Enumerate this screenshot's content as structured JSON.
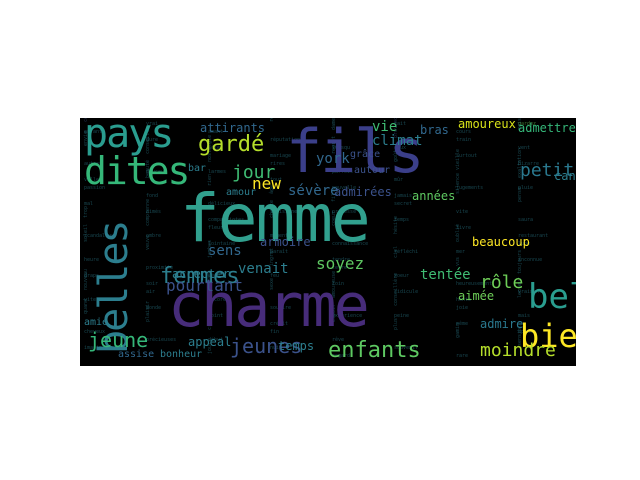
{
  "palette": {
    "teal": "#2a9d8f",
    "cyan": "#31a08e",
    "purple": "#472c7a",
    "indigo": "#3b3f8a",
    "blue": "#2c6e8e",
    "green": "#3fbc73",
    "lime": "#8fd744",
    "yellow": "#f0e51a",
    "olive": "#b5de2b"
  },
  "words": [
    {
      "text": "femme",
      "color": "#31a08e"
    },
    {
      "text": "fils",
      "color": "#3b3f8a"
    },
    {
      "text": "charme",
      "color": "#472c7a"
    },
    {
      "text": "pays",
      "color": "#2a9d8f"
    },
    {
      "text": "dites",
      "color": "#35b779"
    },
    {
      "text": "belles",
      "color": "#2c7e8e"
    },
    {
      "text": "bien",
      "color": "#fde725"
    },
    {
      "text": "belle",
      "color": "#2a9d8f"
    },
    {
      "text": "gardé",
      "color": "#b5de2b"
    },
    {
      "text": "femmes",
      "color": "#2c7e8e"
    },
    {
      "text": "jour",
      "color": "#3fbc73"
    },
    {
      "text": "new",
      "color": "#fde725"
    },
    {
      "text": "jeune",
      "color": "#35b779"
    },
    {
      "text": "jeunes",
      "color": "#3b528b"
    },
    {
      "text": "enfants",
      "color": "#5ec962"
    },
    {
      "text": "moindre",
      "color": "#b5de2b"
    },
    {
      "text": "rôle",
      "color": "#6ece58"
    },
    {
      "text": "petit",
      "color": "#2a788e"
    },
    {
      "text": "pourtant",
      "color": "#3b528b"
    },
    {
      "text": "york",
      "color": "#31688e"
    },
    {
      "text": "sévère",
      "color": "#31688e"
    },
    {
      "text": "sens",
      "color": "#31688e"
    },
    {
      "text": "soyez",
      "color": "#5ec962"
    },
    {
      "text": "venait",
      "color": "#2c7e8e"
    },
    {
      "text": "tentée",
      "color": "#3fbc73"
    },
    {
      "text": "temps",
      "color": "#2c7e8e"
    },
    {
      "text": "cantonnez",
      "color": "#2c7e8e"
    },
    {
      "text": "admettre",
      "color": "#35b779"
    },
    {
      "text": "amoureux",
      "color": "#d8e219"
    },
    {
      "text": "années",
      "color": "#5ec962"
    },
    {
      "text": "vie",
      "color": "#3fbc73"
    },
    {
      "text": "climat",
      "color": "#2c7e8e"
    },
    {
      "text": "bras",
      "color": "#31688e"
    },
    {
      "text": "attirants",
      "color": "#31688e"
    },
    {
      "text": "admirées",
      "color": "#3b528b"
    },
    {
      "text": "armoire",
      "color": "#3b528b"
    },
    {
      "text": "beaucoup",
      "color": "#fde725"
    },
    {
      "text": "aimée",
      "color": "#6ece58"
    },
    {
      "text": "admire",
      "color": "#2a788e"
    },
    {
      "text": "accepter",
      "color": "#2c7e8e"
    },
    {
      "text": "appeal",
      "color": "#2c7e8e"
    },
    {
      "text": "assise",
      "color": "#31688e"
    },
    {
      "text": "bonheur",
      "color": "#2c7e8e"
    },
    {
      "text": "amie",
      "color": "#2c7e8e"
    },
    {
      "text": "amour",
      "color": "#2c7e8e"
    },
    {
      "text": "bar",
      "color": "#2c7e8e"
    },
    {
      "text": "autour",
      "color": "#3b528b"
    },
    {
      "text": "grâce",
      "color": "#3b528b"
    },
    {
      "text": "certainement",
      "color": "#3b528b"
    },
    {
      "text": "gardez",
      "color": "#6ece58"
    },
    {
      "text": "cours",
      "color": "#2c7e8e"
    },
    {
      "text": "province",
      "color": "#3b528b"
    },
    {
      "text": "lorsqu",
      "color": "#2c7e8e"
    },
    {
      "text": "mariage",
      "color": "#2c7e8e"
    },
    {
      "text": "nostalgie",
      "color": "#2c7e8e"
    },
    {
      "text": "douceur",
      "color": "#2c7e8e"
    },
    {
      "text": "ville",
      "color": "#2c7e8e"
    },
    {
      "text": "exaltation",
      "color": "#2c7e8e"
    },
    {
      "text": "jugements",
      "color": "#2c7e8e"
    },
    {
      "text": "jamais",
      "color": "#2c7e8e"
    },
    {
      "text": "fille",
      "color": "#2c7e8e"
    },
    {
      "text": "louisiane",
      "color": "#2c7e8e"
    },
    {
      "text": "compatriotes",
      "color": "#2c7e8e"
    },
    {
      "text": "comprenne",
      "color": "#2c7e8e"
    },
    {
      "text": "scandaleux",
      "color": "#2c7e8e"
    },
    {
      "text": "restaurant",
      "color": "#2c7e8e"
    },
    {
      "text": "oublié",
      "color": "#2c7e8e"
    },
    {
      "text": "réfléchi",
      "color": "#2c7e8e"
    },
    {
      "text": "tendre",
      "color": "#2c7e8e"
    },
    {
      "text": "ingrat",
      "color": "#2c7e8e"
    },
    {
      "text": "mère",
      "color": "#2c7e8e"
    },
    {
      "text": "soir",
      "color": "#2c7e8e"
    },
    {
      "text": "nouveau",
      "color": "#2c7e8e"
    },
    {
      "text": "vraiment",
      "color": "#2c7e8e"
    },
    {
      "text": "honte",
      "color": "#2c7e8e"
    },
    {
      "text": "conseillère",
      "color": "#2c7e8e"
    },
    {
      "text": "expérience",
      "color": "#2c7e8e"
    },
    {
      "text": "créait",
      "color": "#2c7e8e"
    },
    {
      "text": "critique",
      "color": "#2c7e8e"
    },
    {
      "text": "précieuses",
      "color": "#2c7e8e"
    },
    {
      "text": "imagine",
      "color": "#2c7e8e"
    },
    {
      "text": "sensible",
      "color": "#2c7e8e"
    },
    {
      "text": "rare",
      "color": "#2c7e8e"
    },
    {
      "text": "fait",
      "color": "#2c7e8e"
    },
    {
      "text": "dame",
      "color": "#2c7e8e"
    },
    {
      "text": "réputation",
      "color": "#2c7e8e"
    },
    {
      "text": "côté",
      "color": "#2c7e8e"
    },
    {
      "text": "conseille",
      "color": "#2c7e8e"
    },
    {
      "text": "autres",
      "color": "#2c7e8e"
    },
    {
      "text": "bizarre",
      "color": "#2c7e8e"
    },
    {
      "text": "vieille",
      "color": "#2c7e8e"
    },
    {
      "text": "mûr",
      "color": "#2c7e8e"
    },
    {
      "text": "nouvelle",
      "color": "#2c7e8e"
    },
    {
      "text": "âge",
      "color": "#2c7e8e"
    },
    {
      "text": "délicieux",
      "color": "#2c7e8e"
    },
    {
      "text": "aimés",
      "color": "#2c7e8e"
    },
    {
      "text": "trop",
      "color": "#2c7e8e"
    },
    {
      "text": "saura",
      "color": "#2c7e8e"
    },
    {
      "text": "livre",
      "color": "#2c7e8e"
    },
    {
      "text": "hésite",
      "color": "#2c7e8e"
    },
    {
      "text": "connaissance",
      "color": "#2c7e8e"
    },
    {
      "text": "paraît",
      "color": "#2c7e8e"
    },
    {
      "text": "jambes",
      "color": "#2c7e8e"
    },
    {
      "text": "proximité",
      "color": "#2c7e8e"
    },
    {
      "text": "draps",
      "color": "#2c7e8e"
    },
    {
      "text": "toujours",
      "color": "#2c7e8e"
    },
    {
      "text": "heureusement",
      "color": "#2c7e8e"
    },
    {
      "text": "ridicule",
      "color": "#2c7e8e"
    },
    {
      "text": "amoureuse",
      "color": "#2c7e8e"
    },
    {
      "text": "sourire",
      "color": "#2c7e8e"
    },
    {
      "text": "point",
      "color": "#2c7e8e"
    },
    {
      "text": "plaisir",
      "color": "#2c7e8e"
    },
    {
      "text": "cheveux",
      "color": "#2c7e8e"
    },
    {
      "text": "épouse",
      "color": "#2c7e8e"
    },
    {
      "text": "gamin",
      "color": "#2c7e8e"
    },
    {
      "text": "souvenir",
      "color": "#2c7e8e"
    },
    {
      "text": "regard",
      "color": "#2c7e8e"
    },
    {
      "text": "reste",
      "color": "#2c7e8e"
    },
    {
      "text": "amant",
      "color": "#2c7e8e"
    },
    {
      "text": "dure",
      "color": "#2c7e8e"
    },
    {
      "text": "envie",
      "color": "#2c7e8e"
    },
    {
      "text": "vent",
      "color": "#2c7e8e"
    },
    {
      "text": "surtout",
      "color": "#2c7e8e"
    },
    {
      "text": "goût",
      "color": "#2c7e8e"
    },
    {
      "text": "parfois",
      "color": "#2c7e8e"
    },
    {
      "text": "tout",
      "color": "#2c7e8e"
    },
    {
      "text": "rien",
      "color": "#2c7e8e"
    },
    {
      "text": "fond",
      "color": "#2c7e8e"
    },
    {
      "text": "mal",
      "color": "#2c7e8e"
    },
    {
      "text": "pense",
      "color": "#2c7e8e"
    },
    {
      "text": "vite",
      "color": "#2c7e8e"
    },
    {
      "text": "temps",
      "color": "#2c7e8e"
    },
    {
      "text": "coeur",
      "color": "#2c7e8e"
    },
    {
      "text": "moment",
      "color": "#2c7e8e"
    },
    {
      "text": "lointaine",
      "color": "#2c7e8e"
    },
    {
      "text": "veuve",
      "color": "#2c7e8e"
    },
    {
      "text": "heure",
      "color": "#2c7e8e"
    },
    {
      "text": "inconnue",
      "color": "#2c7e8e"
    },
    {
      "text": "vus",
      "color": "#2c7e8e"
    },
    {
      "text": "soeur",
      "color": "#2c7e8e"
    },
    {
      "text": "loin",
      "color": "#2c7e8e"
    },
    {
      "text": "sexe",
      "color": "#2c7e8e"
    },
    {
      "text": "encore",
      "color": "#2c7e8e"
    },
    {
      "text": "monde",
      "color": "#2c7e8e"
    },
    {
      "text": "quand",
      "color": "#2c7e8e"
    },
    {
      "text": "mais",
      "color": "#2c7e8e"
    },
    {
      "text": "même",
      "color": "#2c7e8e"
    },
    {
      "text": "plus",
      "color": "#2c7e8e"
    },
    {
      "text": "rêve",
      "color": "#2c7e8e"
    },
    {
      "text": "nuit",
      "color": "#2c7e8e"
    },
    {
      "text": "jours",
      "color": "#2c7e8e"
    },
    {
      "text": "vrai",
      "color": "#2c7e8e"
    },
    {
      "text": "enfant",
      "color": "#2c7e8e"
    },
    {
      "text": "maison",
      "color": "#2c7e8e"
    },
    {
      "text": "train",
      "color": "#2c7e8e"
    },
    {
      "text": "doux",
      "color": "#2c7e8e"
    },
    {
      "text": "regret",
      "color": "#2c7e8e"
    },
    {
      "text": "rires",
      "color": "#2c7e8e"
    },
    {
      "text": "larmes",
      "color": "#2c7e8e"
    },
    {
      "text": "beauté",
      "color": "#2c7e8e"
    },
    {
      "text": "passion",
      "color": "#2c7e8e"
    },
    {
      "text": "pluie",
      "color": "#2c7e8e"
    },
    {
      "text": "silence",
      "color": "#2c7e8e"
    },
    {
      "text": "secret",
      "color": "#2c7e8e"
    },
    {
      "text": "promesse",
      "color": "#2c7e8e"
    },
    {
      "text": "chance",
      "color": "#2c7e8e"
    },
    {
      "text": "fleur",
      "color": "#2c7e8e"
    },
    {
      "text": "ombre",
      "color": "#2c7e8e"
    },
    {
      "text": "soleil",
      "color": "#2c7e8e"
    },
    {
      "text": "lune",
      "color": "#2c7e8e"
    },
    {
      "text": "mer",
      "color": "#2c7e8e"
    },
    {
      "text": "ciel",
      "color": "#2c7e8e"
    },
    {
      "text": "terre",
      "color": "#2c7e8e"
    },
    {
      "text": "feu",
      "color": "#2c7e8e"
    },
    {
      "text": "eau",
      "color": "#2c7e8e"
    },
    {
      "text": "air",
      "color": "#2c7e8e"
    },
    {
      "text": "vitesse",
      "color": "#2c7e8e"
    },
    {
      "text": "lenteur",
      "color": "#2c7e8e"
    },
    {
      "text": "joie",
      "color": "#2c7e8e"
    },
    {
      "text": "peine",
      "color": "#2c7e8e"
    },
    {
      "text": "espoir",
      "color": "#2c7e8e"
    },
    {
      "text": "fin",
      "color": "#2c7e8e"
    },
    {
      "text": "début",
      "color": "#2c7e8e"
    }
  ]
}
